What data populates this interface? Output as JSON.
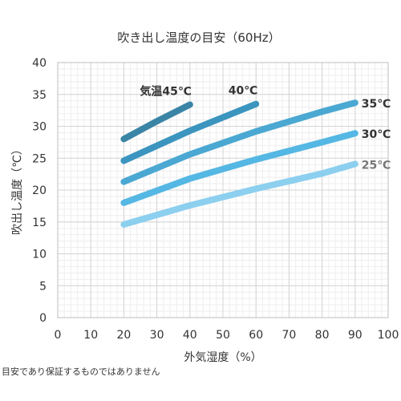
{
  "chart_data": {
    "type": "line",
    "title": "吹き出し温度の目安（60Hz）",
    "xlabel": "外気湿度（%）",
    "ylabel": "吹出し温度（℃）",
    "xlim": [
      0,
      100
    ],
    "ylim": [
      0,
      40
    ],
    "xticks": [
      "0",
      "10",
      "20",
      "30",
      "40",
      "50",
      "60",
      "70",
      "80",
      "90",
      "100"
    ],
    "yticks": [
      "0",
      "5",
      "10",
      "15",
      "20",
      "25",
      "30",
      "35",
      "40"
    ],
    "grid": true,
    "series": [
      {
        "name": "気温45℃",
        "color": "#3a84a6",
        "x": [
          20,
          30,
          40
        ],
        "y": [
          28.0,
          30.8,
          33.4
        ]
      },
      {
        "name": "40℃",
        "color": "#3b95bf",
        "x": [
          20,
          40,
          60
        ],
        "y": [
          24.6,
          29.3,
          33.5
        ]
      },
      {
        "name": "35℃",
        "color": "#4aa8d2",
        "x": [
          20,
          40,
          60,
          80,
          90
        ],
        "y": [
          21.3,
          25.6,
          29.2,
          32.3,
          33.7
        ]
      },
      {
        "name": "30℃",
        "color": "#55b7e3",
        "x": [
          20,
          40,
          60,
          80,
          90
        ],
        "y": [
          18.0,
          21.8,
          24.8,
          27.5,
          28.9
        ]
      },
      {
        "name": "25℃",
        "color": "#8ccfef",
        "x": [
          20,
          40,
          60,
          80,
          90
        ],
        "y": [
          14.6,
          17.6,
          20.2,
          22.6,
          24.1
        ]
      }
    ]
  },
  "footnote": "目安であり保証するものではありません"
}
